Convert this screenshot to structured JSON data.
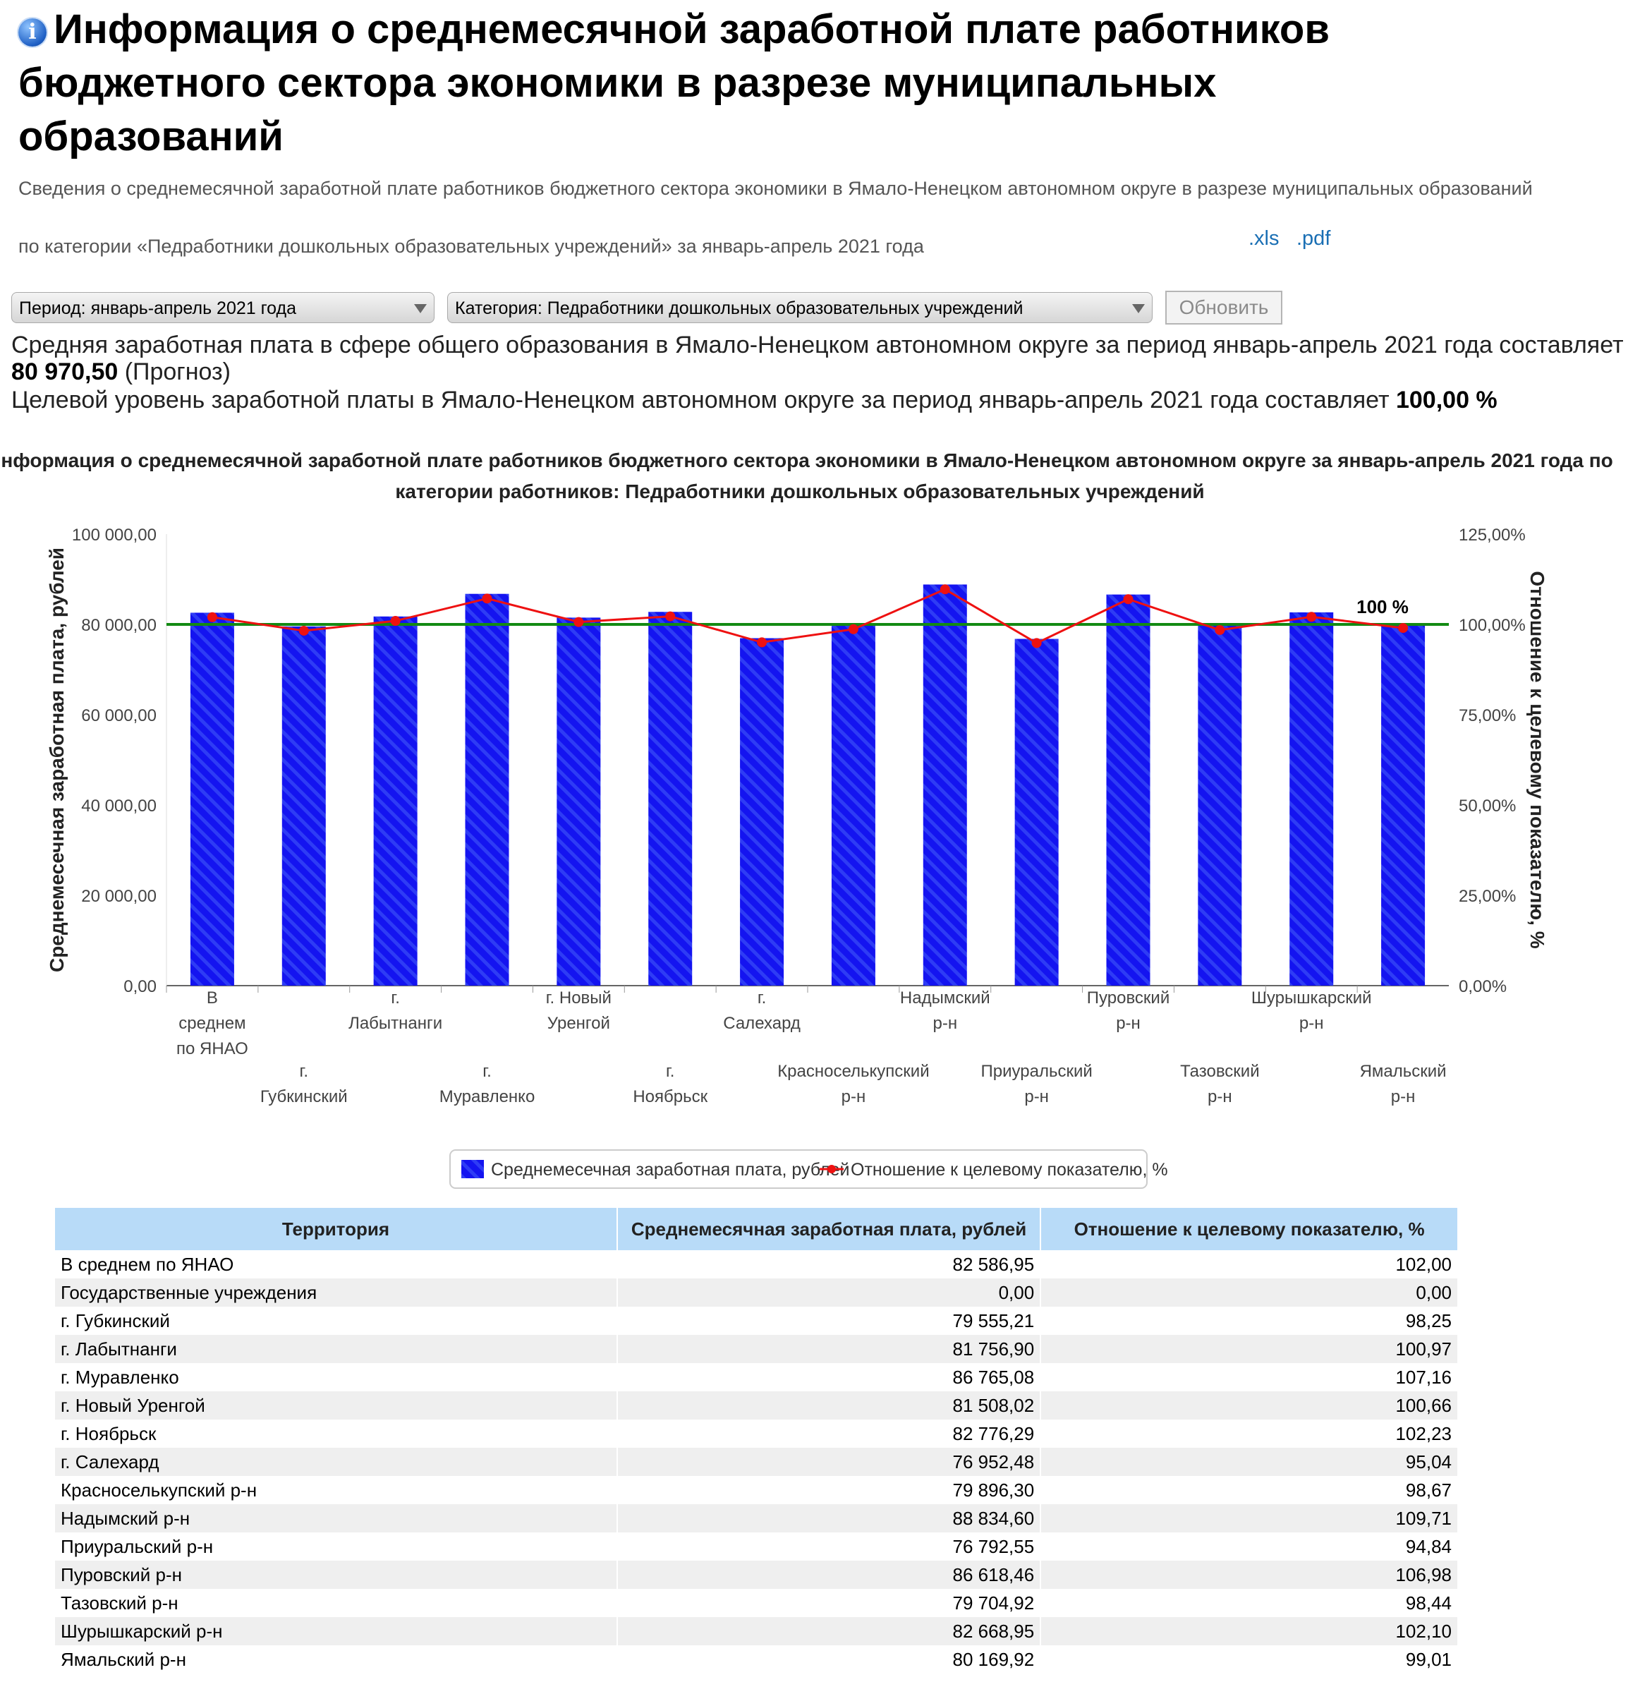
{
  "page": {
    "title": "Информация о среднемесячной заработной плате работников бюджетного сектора экономики в разрезе муниципальных образований",
    "subtitle_line1": "Сведения о среднемесячной заработной плате работников бюджетного сектора экономики в Ямало-Ненецком автономном округе в разрезе муниципальных образований",
    "subtitle_line2": "по категории «Педработники дошкольных образовательных учреждений» за январь-апрель 2021 года",
    "link_xls": ".xls",
    "link_pdf": ".pdf"
  },
  "filters": {
    "period": "Период: январь-апрель 2021 года",
    "category": "Категория: Педработники дошкольных образовательных учреждений",
    "refresh_label": "Обновить"
  },
  "summary": {
    "avg_text": "Средняя заработная плата в сфере общего образования в Ямало-Ненецком автономном округе за период январь-апрель 2021 года составляет",
    "avg_value": "80 970,50",
    "avg_note": "(Прогноз)",
    "target_text": "Целевой уровень заработной платы в Ямало-Ненецком автономном округе за период январь-апрель 2021 года составляет",
    "target_value": "100,00 %"
  },
  "chart_data": {
    "type": "bar",
    "title": "Информация о среднемесячной заработной плате работников бюджетного сектора экономики в Ямало-Ненецком автономном округе за январь-апрель 2021 года по категории работников: Педработники дошкольных образовательных учреждений",
    "ylabel": "Среднемесечная заработная плата, рублей",
    "y2label": "Отношение к целевому показателю, %",
    "ylim": [
      0,
      100000
    ],
    "y2lim": [
      0,
      125
    ],
    "yticks": [
      "0,00",
      "20 000,00",
      "40 000,00",
      "60 000,00",
      "80 000,00",
      "100 000,00"
    ],
    "y2ticks": [
      "0,00%",
      "25,00%",
      "50,00%",
      "75,00%",
      "100,00%",
      "125,00%"
    ],
    "categories": [
      [
        "В",
        "среднем",
        "по ЯНАО"
      ],
      [
        "г.",
        "Губкинский"
      ],
      [
        "г.",
        "Лабытнанги"
      ],
      [
        "г.",
        "Муравленко"
      ],
      [
        "г. Новый",
        "Уренгой"
      ],
      [
        "г.",
        "Ноябрьск"
      ],
      [
        "г.",
        "Салехард"
      ],
      [
        "Красноселькупский",
        "р-н"
      ],
      [
        "Надымский",
        "р-н"
      ],
      [
        "Приуральский",
        "р-н"
      ],
      [
        "Пуровский",
        "р-н"
      ],
      [
        "Тазовский",
        "р-н"
      ],
      [
        "Шурышкарский",
        "р-н"
      ],
      [
        "Ямальский",
        "р-н"
      ]
    ],
    "series": [
      {
        "name": "Среднемесечная заработная плата, рублей",
        "type": "bar",
        "color": "#1414f0",
        "values": [
          82586.95,
          79555.21,
          81756.9,
          86765.08,
          81508.02,
          82776.29,
          76952.48,
          79896.3,
          88834.6,
          76792.55,
          86618.46,
          79704.92,
          82668.95,
          80169.92
        ]
      },
      {
        "name": "Отношение к целевому показателю, %",
        "type": "line",
        "axis": "right",
        "color": "#ee1111",
        "values": [
          102.0,
          98.25,
          100.97,
          107.16,
          100.66,
          102.23,
          95.04,
          98.67,
          109.71,
          94.84,
          106.98,
          98.44,
          102.1,
          99.01
        ]
      }
    ],
    "target_line": {
      "value": 100,
      "label": "100 %",
      "color": "#138a13"
    },
    "legend_position": "bottom"
  },
  "table": {
    "headers": [
      "Территория",
      "Среднемесячная заработная плата, рублей",
      "Отношение к целевому показателю, %"
    ],
    "rows": [
      [
        "В среднем по ЯНАО",
        "82 586,95",
        "102,00"
      ],
      [
        "Государственные учреждения",
        "0,00",
        "0,00"
      ],
      [
        "г. Губкинский",
        "79 555,21",
        "98,25"
      ],
      [
        "г. Лабытнанги",
        "81 756,90",
        "100,97"
      ],
      [
        "г. Муравленко",
        "86 765,08",
        "107,16"
      ],
      [
        "г. Новый Уренгой",
        "81 508,02",
        "100,66"
      ],
      [
        "г. Ноябрьск",
        "82 776,29",
        "102,23"
      ],
      [
        "г. Салехард",
        "76 952,48",
        "95,04"
      ],
      [
        "Красноселькупский р-н",
        "79 896,30",
        "98,67"
      ],
      [
        "Надымский р-н",
        "88 834,60",
        "109,71"
      ],
      [
        "Приуральский р-н",
        "76 792,55",
        "94,84"
      ],
      [
        "Пуровский р-н",
        "86 618,46",
        "106,98"
      ],
      [
        "Тазовский р-н",
        "79 704,92",
        "98,44"
      ],
      [
        "Шурышкарский р-н",
        "82 668,95",
        "102,10"
      ],
      [
        "Ямальский р-н",
        "80 169,92",
        "99,01"
      ]
    ]
  }
}
